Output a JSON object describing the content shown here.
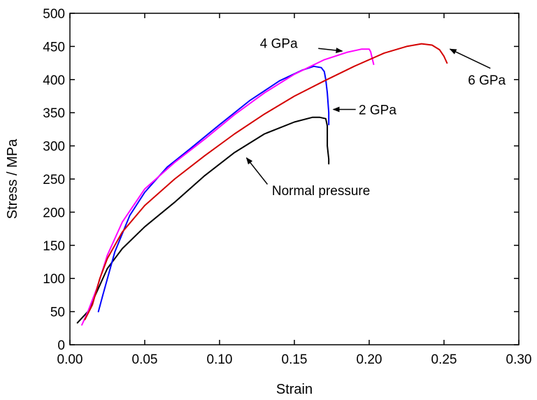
{
  "chart_data": {
    "type": "line",
    "title": "",
    "xlabel": "Strain",
    "ylabel": "Stress / MPa",
    "xlim": [
      0.0,
      0.3
    ],
    "ylim": [
      0,
      500
    ],
    "xticks": [
      0.0,
      0.05,
      0.1,
      0.15,
      0.2,
      0.25,
      0.3
    ],
    "xtick_labels": [
      "0.00",
      "0.05",
      "0.10",
      "0.15",
      "0.20",
      "0.25",
      "0.30"
    ],
    "yticks": [
      0,
      50,
      100,
      150,
      200,
      250,
      300,
      350,
      400,
      450,
      500
    ],
    "ytick_labels": [
      "0",
      "50",
      "100",
      "150",
      "200",
      "250",
      "300",
      "350",
      "400",
      "450",
      "500"
    ],
    "grid": false,
    "legend": "none",
    "series": [
      {
        "color": "#000000",
        "x": [
          0.005,
          0.012,
          0.018,
          0.025,
          0.035,
          0.05,
          0.07,
          0.09,
          0.11,
          0.13,
          0.15,
          0.162,
          0.167,
          0.171,
          0.172,
          0.172,
          0.173,
          0.173
        ],
        "y": [
          33,
          50,
          80,
          115,
          145,
          178,
          215,
          255,
          290,
          318,
          336,
          343,
          343,
          341,
          330,
          300,
          280,
          273
        ]
      },
      {
        "color": "#0000ff",
        "x": [
          0.019,
          0.022,
          0.03,
          0.04,
          0.05,
          0.065,
          0.08,
          0.1,
          0.12,
          0.14,
          0.155,
          0.163,
          0.168,
          0.17,
          0.171,
          0.172,
          0.173,
          0.173
        ],
        "y": [
          50,
          75,
          140,
          195,
          230,
          268,
          295,
          332,
          368,
          398,
          414,
          420,
          418,
          412,
          400,
          380,
          350,
          332
        ]
      },
      {
        "color": "#ff00ff",
        "x": [
          0.008,
          0.012,
          0.018,
          0.025,
          0.035,
          0.05,
          0.07,
          0.09,
          0.11,
          0.13,
          0.15,
          0.17,
          0.185,
          0.195,
          0.2,
          0.201,
          0.202,
          0.203
        ],
        "y": [
          30,
          50,
          85,
          135,
          185,
          235,
          275,
          310,
          347,
          380,
          408,
          430,
          441,
          446,
          446,
          442,
          432,
          423
        ]
      },
      {
        "color": "#d40000",
        "x": [
          0.01,
          0.015,
          0.02,
          0.025,
          0.035,
          0.05,
          0.07,
          0.09,
          0.11,
          0.13,
          0.15,
          0.17,
          0.19,
          0.21,
          0.225,
          0.235,
          0.242,
          0.247,
          0.25,
          0.252
        ],
        "y": [
          38,
          60,
          100,
          130,
          170,
          210,
          250,
          285,
          318,
          348,
          375,
          398,
          420,
          440,
          450,
          454,
          452,
          445,
          435,
          425
        ]
      }
    ],
    "annotations": [
      {
        "text": "Normal pressure",
        "x": 0.135,
        "y": 233,
        "arrow_tip_x": 0.118,
        "arrow_tip_y": 282,
        "arrow_tail_x": 0.132,
        "arrow_tail_y": 242
      },
      {
        "text": "2 GPa",
        "x": 0.193,
        "y": 355,
        "arrow_tip_x": 0.176,
        "arrow_tip_y": 355,
        "arrow_tail_x": 0.191,
        "arrow_tail_y": 355
      },
      {
        "text": "4 GPa",
        "x": 0.127,
        "y": 455,
        "arrow_tip_x": 0.182,
        "arrow_tip_y": 443,
        "arrow_tail_x": 0.166,
        "arrow_tail_y": 447
      },
      {
        "text": "6 GPa",
        "x": 0.266,
        "y": 400,
        "arrow_tip_x": 0.254,
        "arrow_tip_y": 446,
        "arrow_tail_x": 0.281,
        "arrow_tail_y": 417
      }
    ]
  }
}
